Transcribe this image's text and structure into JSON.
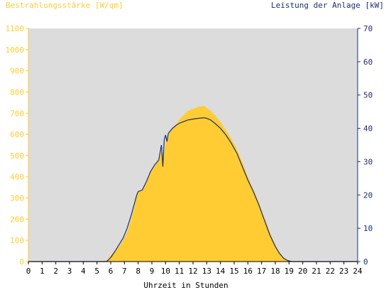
{
  "chart_data": {
    "type": "area",
    "left_axis_title": "Bestrahlungsstärke [W/qm]",
    "right_axis_title": "Leistung der Anlage [kW]",
    "xlabel": "Uhrzeit in Stunden",
    "x_ticks": [
      "0",
      "1",
      "2",
      "3",
      "4",
      "5",
      "6",
      "7",
      "8",
      "9",
      "10",
      "11",
      "12",
      "13",
      "14",
      "15",
      "16",
      "17",
      "18",
      "19",
      "20",
      "21",
      "22",
      "23",
      "24"
    ],
    "y_left_ticks": [
      "0",
      "100",
      "200",
      "300",
      "400",
      "500",
      "600",
      "700",
      "800",
      "900",
      "1000",
      "1100"
    ],
    "y_right_ticks": [
      "0",
      "10",
      "20",
      "30",
      "40",
      "50",
      "60",
      "70"
    ],
    "xlim": [
      0,
      24
    ],
    "ylim_left": [
      0,
      1100
    ],
    "ylim_right": [
      0,
      70
    ],
    "grid": false,
    "colors": {
      "plot_background": "#dcdcdc",
      "irradiance_fill": "#ffcc33",
      "power_line": "#1a2f73",
      "left_axis": "#ffcc33",
      "right_axis": "#1a2f73"
    },
    "series": [
      {
        "name": "Bestrahlungsstärke [W/qm]",
        "axis": "left",
        "kind": "area",
        "x": [
          0,
          5.5,
          5.8,
          6.0,
          6.3,
          6.6,
          6.9,
          7.2,
          7.5,
          7.7,
          7.9,
          8.0,
          8.3,
          8.6,
          8.9,
          9.2,
          9.5,
          9.7,
          9.9,
          10.0,
          10.2,
          10.5,
          10.8,
          11.0,
          11.3,
          11.6,
          12.0,
          12.4,
          12.8,
          13.0,
          13.3,
          13.6,
          14.0,
          14.4,
          14.8,
          15.2,
          15.6,
          16.0,
          16.4,
          16.8,
          17.2,
          17.6,
          18.0,
          18.3,
          18.6,
          18.9,
          19.2,
          19.5,
          24
        ],
        "y": [
          0,
          0,
          10,
          30,
          50,
          70,
          100,
          140,
          200,
          250,
          310,
          330,
          340,
          370,
          420,
          450,
          480,
          520,
          510,
          560,
          600,
          630,
          650,
          670,
          690,
          710,
          720,
          730,
          735,
          725,
          710,
          690,
          660,
          620,
          580,
          530,
          470,
          400,
          340,
          280,
          210,
          140,
          80,
          45,
          20,
          8,
          2,
          0,
          0
        ]
      },
      {
        "name": "Leistung der Anlage [kW]",
        "axis": "right",
        "kind": "line",
        "x": [
          0,
          5.7,
          6.0,
          6.3,
          6.6,
          6.9,
          7.2,
          7.5,
          7.7,
          7.9,
          8.0,
          8.3,
          8.6,
          8.9,
          9.2,
          9.5,
          9.7,
          9.8,
          9.9,
          10.0,
          10.1,
          10.2,
          10.5,
          10.8,
          11.0,
          11.3,
          11.6,
          12.0,
          12.4,
          12.8,
          13.0,
          13.3,
          13.6,
          14.0,
          14.4,
          14.8,
          15.2,
          15.6,
          16.0,
          16.4,
          16.8,
          17.2,
          17.6,
          18.0,
          18.3,
          18.6,
          18.9,
          19.2,
          19.5,
          24
        ],
        "y": [
          0,
          0,
          1.2,
          3.0,
          5.0,
          7.0,
          10.0,
          14.0,
          17.0,
          20.0,
          21.0,
          21.5,
          24.0,
          27.0,
          29.0,
          30.5,
          35.0,
          28.5,
          36.5,
          38.0,
          36.0,
          38.5,
          40.0,
          41.0,
          41.5,
          42.0,
          42.5,
          42.8,
          43.0,
          43.2,
          43.0,
          42.5,
          41.5,
          40.0,
          38.0,
          35.5,
          32.5,
          28.5,
          24.5,
          21.0,
          17.0,
          12.5,
          8.0,
          4.5,
          2.5,
          1.0,
          0.3,
          0,
          0,
          0
        ]
      }
    ]
  }
}
